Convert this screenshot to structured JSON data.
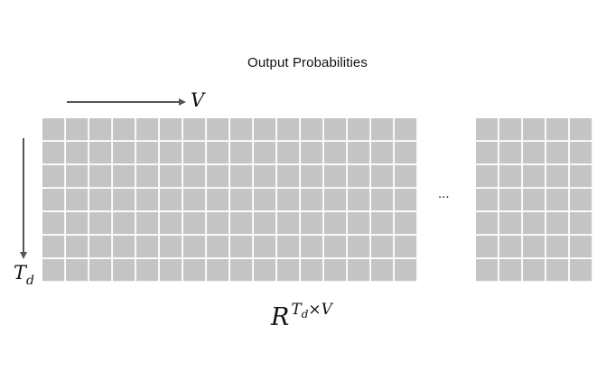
{
  "title": "Output Probabilities",
  "axis_horizontal_label": "V",
  "axis_vertical_label": {
    "base": "T",
    "subscript": "d"
  },
  "ellipsis": "...",
  "formula": {
    "base": "R",
    "superscript_base": "T",
    "superscript_subscript": "d",
    "superscript_rest": "×V"
  },
  "grid_left": {
    "rows": 7,
    "cols": 16
  },
  "grid_right": {
    "rows": 7,
    "cols": 5
  },
  "colors": {
    "cell": "#c4c4c4",
    "arrow": "#555555",
    "text": "#111111"
  }
}
